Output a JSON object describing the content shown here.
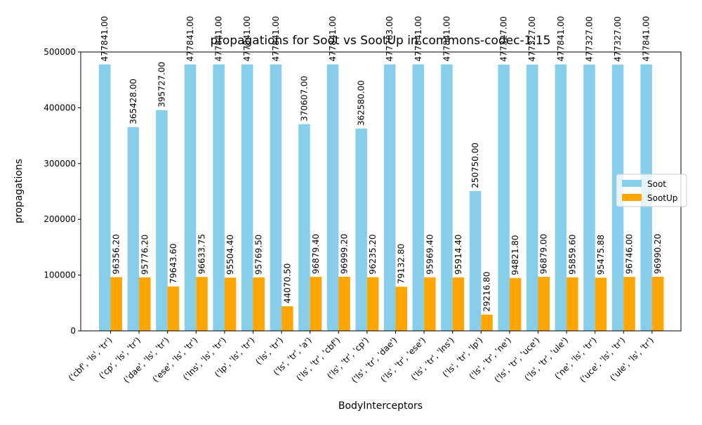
{
  "chart_data": {
    "type": "bar",
    "title": "propagations for Soot vs SootUp in commons-codec-1.15",
    "xlabel": "BodyInterceptors",
    "ylabel": "propagations",
    "ylim": [
      0,
      500000
    ],
    "yticks": [
      0,
      100000,
      200000,
      300000,
      400000,
      500000
    ],
    "ytick_labels": [
      "0",
      "100000",
      "200000",
      "300000",
      "400000",
      "500000"
    ],
    "grid": false,
    "legend_position": "center-right",
    "categories": [
      "('cbf', 'ls', 'tr')",
      "('cp', 'ls', 'tr')",
      "('dae', 'ls', 'tr')",
      "('ese', 'ls', 'tr')",
      "('lns', 'ls', 'tr')",
      "('lp', 'ls', 'tr')",
      "('ls', 'tr')",
      "('ls', 'tr', 'a')",
      "('ls', 'tr', 'cbf')",
      "('ls', 'tr', 'cp')",
      "('ls', 'tr', 'dae')",
      "('ls', 'tr', 'ese')",
      "('ls', 'tr', 'lns')",
      "('ls', 'tr', 'lp')",
      "('ls', 'tr', 'ne')",
      "('ls', 'tr', 'uce')",
      "('ls', 'tr', 'ule')",
      "('ne', 'ls', 'tr')",
      "('uce', 'ls', 'tr')",
      "('ule', 'ls', 'tr')"
    ],
    "series": [
      {
        "name": "Soot",
        "color": "#87ceeb",
        "values": [
          477841,
          365428,
          395727,
          477841,
          477841,
          477841,
          477841,
          370607,
          477841,
          362580,
          477783,
          477841,
          477841,
          250750,
          477327,
          477327,
          477841,
          477327,
          477327,
          477841
        ],
        "labels": [
          "477841.00",
          "365428.00",
          "395727.00",
          "477841.00",
          "477841.00",
          "477841.00",
          "477841.00",
          "370607.00",
          "477841.00",
          "362580.00",
          "477783.00",
          "477841.00",
          "477841.00",
          "250750.00",
          "477327.00",
          "477327.00",
          "477841.00",
          "477327.00",
          "477327.00",
          "477841.00"
        ]
      },
      {
        "name": "SootUp",
        "color": "#ffa500",
        "values": [
          96356.2,
          95776.2,
          79643.6,
          96633.75,
          95504.4,
          95769.5,
          44070.5,
          96879.4,
          96999.2,
          96235.2,
          79132.8,
          95969.4,
          95914.4,
          29216.8,
          94821.8,
          96879.0,
          95859.6,
          95475.88,
          96746.0,
          96990.2
        ],
        "labels": [
          "96356.20",
          "95776.20",
          "79643.60",
          "96633.75",
          "95504.40",
          "95769.50",
          "44070.50",
          "96879.40",
          "96999.20",
          "96235.20",
          "79132.80",
          "95969.40",
          "95914.40",
          "29216.80",
          "94821.80",
          "96879.00",
          "95859.60",
          "95475.88",
          "96746.00",
          "96990.20"
        ]
      }
    ]
  }
}
